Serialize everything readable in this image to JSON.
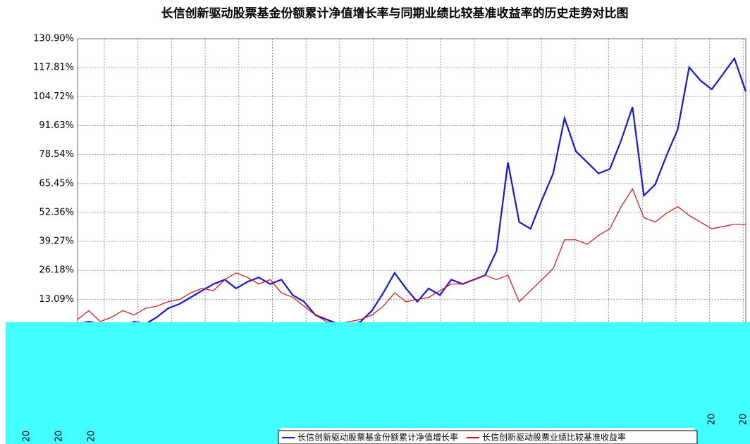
{
  "chart_data": {
    "type": "line",
    "title": "长信创新驱动股票基金份额累计净值增长率与同期业绩比较基准收益率的历史走势对比图",
    "series": [
      {
        "name": "长信创新驱动股票基金份额累计净值增长率",
        "color": "#1515e0",
        "values": [
          2,
          3,
          2,
          1,
          0,
          3,
          2,
          5,
          9,
          11,
          14,
          17,
          20,
          22,
          18,
          21,
          23,
          20,
          22,
          15,
          12,
          6,
          4,
          2,
          1,
          3,
          8,
          16,
          25,
          18,
          12,
          18,
          15,
          22,
          20,
          22,
          24,
          35,
          75,
          48,
          45,
          58,
          70,
          95,
          80,
          75,
          70,
          72,
          85,
          100,
          60,
          65,
          78,
          90,
          118,
          112,
          108,
          115,
          122,
          107
        ]
      },
      {
        "name": "长信创新驱动股票业绩比较基准收益率",
        "color": "#d01010",
        "values": [
          4,
          8,
          3,
          5,
          8,
          6,
          9,
          10,
          12,
          13,
          16,
          18,
          17,
          22,
          25,
          23,
          20,
          22,
          16,
          14,
          10,
          6,
          3,
          2,
          3,
          4,
          6,
          10,
          16,
          12,
          13,
          14,
          17,
          20,
          20,
          22,
          24,
          22,
          24,
          12,
          17,
          22,
          27,
          40,
          40,
          38,
          42,
          45,
          55,
          63,
          50,
          48,
          52,
          55,
          51,
          48,
          45,
          46,
          47,
          47
        ]
      }
    ],
    "ylim": [
      -39.27,
      130.9
    ],
    "yticks": [
      {
        "value": 130.9,
        "label": "130.90%"
      },
      {
        "value": 117.81,
        "label": "117.81%"
      },
      {
        "value": 104.72,
        "label": "104.72%"
      },
      {
        "value": 91.63,
        "label": "91.63%"
      },
      {
        "value": 78.54,
        "label": "78.54%"
      },
      {
        "value": 65.45,
        "label": "65.45%"
      },
      {
        "value": 52.36,
        "label": "52.36%"
      },
      {
        "value": 39.27,
        "label": "39.27%"
      },
      {
        "value": 26.18,
        "label": "26.18%"
      },
      {
        "value": 13.09,
        "label": "13.09%"
      }
    ],
    "xtick_labels": [
      "20",
      "20",
      "20",
      "20",
      "20"
    ],
    "grid": true
  }
}
